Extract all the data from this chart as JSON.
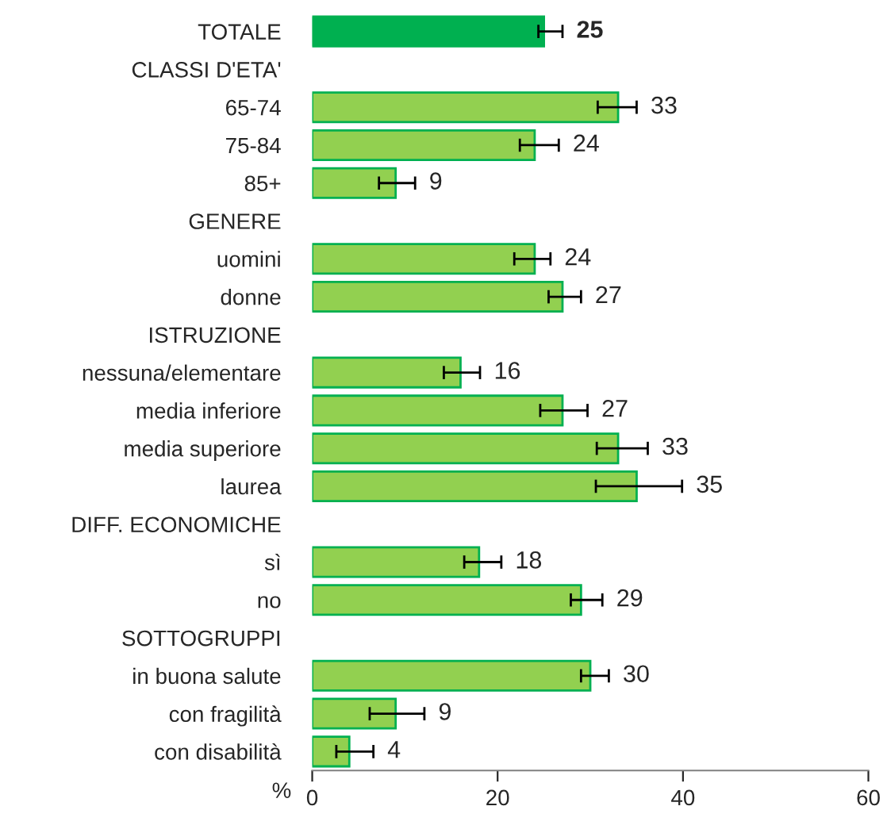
{
  "chart_data": {
    "type": "bar",
    "orientation": "horizontal",
    "xlabel": "%",
    "categories": [
      "TOTALE",
      "CLASSI D'ETA'",
      "65-74",
      "75-84",
      "85+",
      "GENERE",
      "uomini",
      "donne",
      "ISTRUZIONE",
      "nessuna/elementare",
      "media inferiore",
      "media superiore",
      "laurea",
      "DIFF. ECONOMICHE",
      "sì",
      "no",
      "SOTTOGRUPPI",
      "in buona salute",
      "con fragilità",
      "con disabilità"
    ],
    "values": [
      25,
      null,
      33,
      24,
      9,
      null,
      24,
      27,
      null,
      16,
      27,
      33,
      35,
      null,
      18,
      29,
      null,
      30,
      9,
      4
    ],
    "errors": [
      [
        24.4,
        27.0
      ],
      null,
      [
        30.8,
        35.0
      ],
      [
        22.4,
        26.6
      ],
      [
        7.2,
        11.1
      ],
      null,
      [
        21.8,
        25.7
      ],
      [
        25.5,
        29.0
      ],
      null,
      [
        14.2,
        18.1
      ],
      [
        24.6,
        29.7
      ],
      [
        30.7,
        36.2
      ],
      [
        30.6,
        39.9
      ],
      null,
      [
        16.4,
        20.4
      ],
      [
        27.9,
        31.3
      ],
      null,
      [
        29.0,
        32.0
      ],
      [
        6.2,
        12.1
      ],
      [
        2.6,
        6.6
      ]
    ],
    "colors": [
      "#00b050",
      null,
      "#92d050",
      "#92d050",
      "#92d050",
      null,
      "#92d050",
      "#92d050",
      null,
      "#92d050",
      "#92d050",
      "#92d050",
      "#92d050",
      null,
      "#92d050",
      "#92d050",
      null,
      "#92d050",
      "#92d050",
      "#92d050"
    ],
    "data_labels": true,
    "xlim": [
      0,
      60
    ],
    "xticks": [
      0,
      20,
      40,
      60
    ],
    "grid": false,
    "legend": false
  }
}
